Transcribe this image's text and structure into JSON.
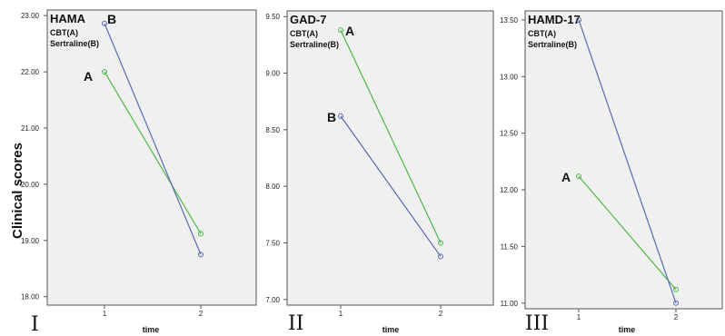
{
  "figure": {
    "ylabel": "Clinical scores"
  },
  "chart_data": [
    {
      "type": "line",
      "panel_label": "I",
      "title": "HAMA",
      "legend": [
        "CBT(A)",
        "Sertraline(B)"
      ],
      "xlabel": "time",
      "x": [
        1,
        2
      ],
      "ylim": [
        17.85,
        23.1
      ],
      "yticks": [
        "18.00",
        "19.00",
        "20.00",
        "21.00",
        "22.00",
        "23.00"
      ],
      "series": [
        {
          "name": "A",
          "values": [
            22.0,
            19.12
          ],
          "color": "#4fb848"
        },
        {
          "name": "B",
          "values": [
            22.86,
            18.75
          ],
          "color": "#5a6ab0"
        }
      ]
    },
    {
      "type": "line",
      "panel_label": "II",
      "title": "GAD-7",
      "legend": [
        "CBT(A)",
        "Sertraline(B)"
      ],
      "xlabel": "time",
      "x": [
        1,
        2
      ],
      "ylim": [
        6.95,
        9.55
      ],
      "yticks": [
        "7.00",
        "7.50",
        "8.00",
        "8.50",
        "9.00",
        "9.50"
      ],
      "series": [
        {
          "name": "A",
          "values": [
            9.38,
            7.5
          ],
          "color": "#4fb848"
        },
        {
          "name": "B",
          "values": [
            8.62,
            7.38
          ],
          "color": "#5a6ab0"
        }
      ]
    },
    {
      "type": "line",
      "panel_label": "III",
      "title": "HAMD-17",
      "legend": [
        "CBT(A)",
        "Sertraline(B)"
      ],
      "xlabel": "time",
      "x": [
        1,
        2
      ],
      "ylim": [
        10.95,
        13.58
      ],
      "yticks": [
        "11.00",
        "11.50",
        "12.00",
        "12.50",
        "13.00",
        "13.50"
      ],
      "series": [
        {
          "name": "A",
          "values": [
            12.12,
            11.12
          ],
          "color": "#4fb848"
        },
        {
          "name": "B",
          "values": [
            13.5,
            11.0
          ],
          "color": "#5a6ab0"
        }
      ]
    }
  ]
}
